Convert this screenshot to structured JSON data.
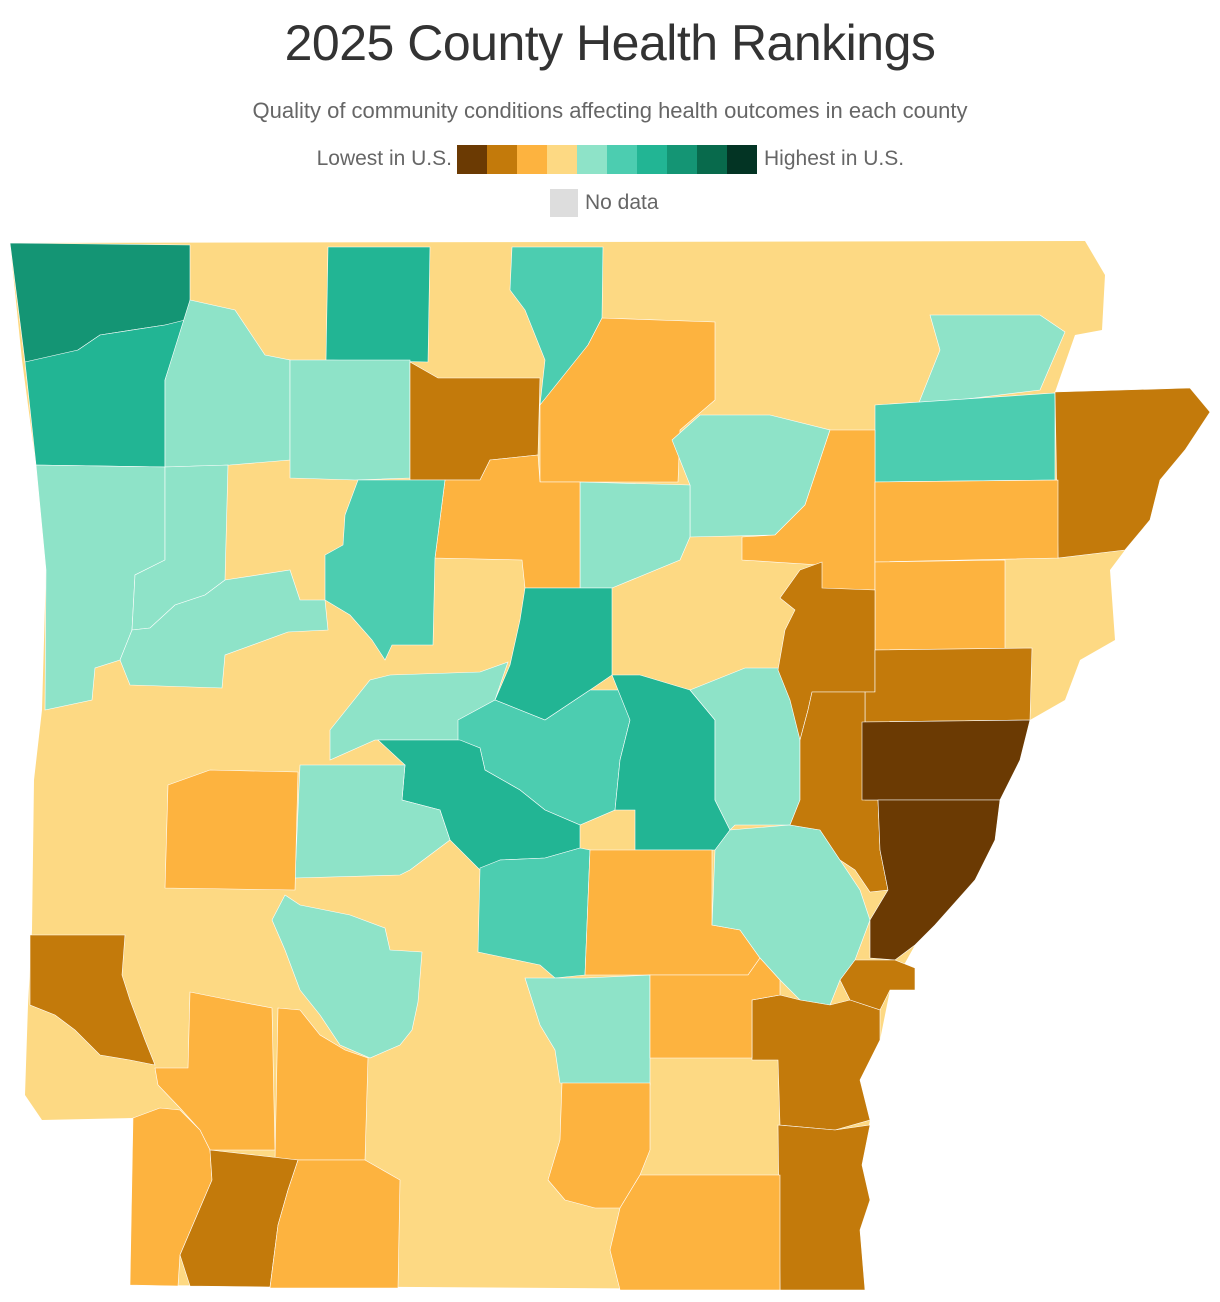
{
  "title": "2025 County Health Rankings",
  "subtitle": "Quality of community conditions affecting health outcomes in each county",
  "legend": {
    "low_label": "Lowest in U.S.",
    "high_label": "Highest in U.S.",
    "colors": [
      "#6b3a03",
      "#c37a0b",
      "#fdb33f",
      "#fdd983",
      "#8ee3c8",
      "#4ccdb0",
      "#22b594",
      "#149574",
      "#086a4c",
      "#033424"
    ],
    "no_data_label": "No data",
    "no_data_color": "#dddddd"
  },
  "map": {
    "state": "Arkansas",
    "counties_level_index_note": "levels 0=lowest … 9=highest"
  }
}
